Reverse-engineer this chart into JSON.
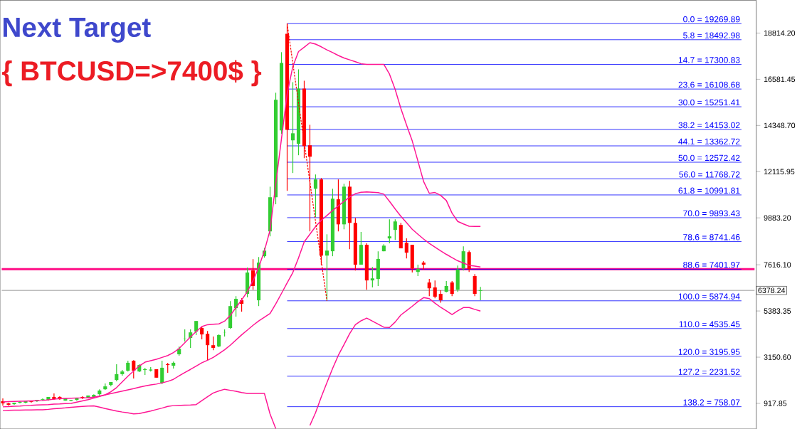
{
  "chart_data": {
    "type": "candlestick",
    "annotations": [
      "Next Target",
      "{ BTCUSD=>7400$ }"
    ],
    "categories": [
      null,
      null,
      null,
      null,
      null,
      null,
      null,
      null,
      null,
      null,
      null,
      null,
      null,
      null,
      null,
      null,
      null,
      null,
      null,
      null,
      null,
      null,
      null,
      null,
      null,
      null,
      null,
      null,
      null,
      null,
      null,
      null,
      null,
      null,
      null,
      null,
      null,
      null,
      null,
      null,
      null,
      null,
      null,
      null,
      null,
      null,
      null,
      null,
      null,
      null,
      null,
      null,
      null,
      null,
      null,
      null,
      null,
      null,
      null,
      null,
      null,
      null,
      null,
      null,
      null,
      null,
      null,
      null,
      null,
      null,
      null,
      null,
      null,
      null,
      null,
      null,
      null,
      null,
      null,
      null,
      null,
      null,
      null,
      null,
      null,
      null,
      null,
      null,
      null,
      null,
      null,
      null,
      null,
      null,
      null,
      null,
      null,
      null,
      null,
      null,
      null,
      null,
      null,
      null,
      null,
      null,
      null,
      null,
      null,
      null,
      null,
      null,
      null,
      null,
      null,
      null,
      null,
      null,
      null,
      null,
      null,
      null,
      null,
      null,
      null,
      null,
      null,
      null,
      null,
      null,
      null,
      null,
      null
    ],
    "ohlc": [
      [
        1020,
        1160,
        810,
        920
      ],
      [
        920,
        950,
        810,
        850
      ],
      [
        880,
        950,
        850,
        950
      ],
      [
        950,
        1020,
        920,
        990
      ],
      [
        950,
        1050,
        920,
        1020
      ],
      [
        1020,
        1050,
        950,
        990
      ],
      [
        1020,
        1090,
        990,
        1090
      ],
      [
        1090,
        1160,
        1050,
        1120
      ],
      [
        1090,
        1230,
        1050,
        1230
      ],
      [
        1230,
        1400,
        1090,
        1120
      ],
      [
        1230,
        1260,
        1090,
        1120
      ],
      [
        1050,
        1160,
        1050,
        1160
      ],
      [
        1050,
        1090,
        1020,
        1090
      ],
      [
        1090,
        1190,
        1050,
        1190
      ],
      [
        1230,
        1260,
        1120,
        1160
      ],
      [
        1190,
        1300,
        1160,
        1300
      ],
      [
        1230,
        1360,
        1190,
        1330
      ],
      [
        1360,
        1600,
        1300,
        1540
      ],
      [
        1600,
        1880,
        1570,
        1740
      ],
      [
        1810,
        1950,
        1740,
        1950
      ],
      [
        2050,
        2810,
        1980,
        2330
      ],
      [
        2330,
        2530,
        2260,
        2460
      ],
      [
        2500,
        2980,
        2460,
        2880
      ],
      [
        2980,
        3010,
        2120,
        2500
      ],
      [
        2460,
        2810,
        2430,
        2770
      ],
      [
        2530,
        2640,
        2290,
        2570
      ],
      [
        2530,
        2670,
        2460,
        2530
      ],
      [
        2570,
        2570,
        2160,
        2160
      ],
      [
        1910,
        2980,
        1850,
        2640
      ],
      [
        2810,
        2880,
        2400,
        2770
      ],
      [
        2740,
        2940,
        2600,
        2880
      ],
      [
        3290,
        3670,
        3220,
        3560
      ],
      [
        4040,
        4490,
        3910,
        4050
      ],
      [
        4080,
        4490,
        3600,
        4350
      ],
      [
        4390,
        4900,
        4220,
        4900
      ],
      [
        4560,
        4630,
        4010,
        4250
      ],
      [
        4280,
        4420,
        2980,
        3730
      ],
      [
        3730,
        4150,
        3490,
        3600
      ],
      [
        3670,
        4250,
        3630,
        4220
      ],
      [
        4350,
        4490,
        4150,
        4360
      ],
      [
        4560,
        5860,
        4520,
        5620
      ],
      [
        5520,
        6100,
        5110,
        5970
      ],
      [
        5900,
        6000,
        5350,
        5730
      ],
      [
        6210,
        7480,
        6040,
        7240
      ],
      [
        7340,
        7890,
        6410,
        6590
      ],
      [
        5900,
        7990,
        5620,
        7720
      ],
      [
        8030,
        8440,
        7960,
        8300
      ],
      [
        9230,
        11390,
        8990,
        10880
      ],
      [
        10880,
        15930,
        10540,
        15590
      ],
      [
        14110,
        17890,
        13940,
        17370
      ],
      [
        18780,
        19270,
        11190,
        14140
      ],
      [
        13630,
        16440,
        12050,
        13970
      ],
      [
        13460,
        17060,
        12910,
        16130
      ],
      [
        16130,
        16510,
        12770,
        13350
      ],
      [
        13390,
        14380,
        9230,
        12840
      ],
      [
        11290,
        11980,
        9920,
        11740
      ],
      [
        11740,
        11810,
        7620,
        8060
      ],
      [
        8060,
        9090,
        5870,
        8300
      ],
      [
        8270,
        11290,
        8030,
        10810
      ],
      [
        10780,
        11740,
        9230,
        9570
      ],
      [
        9570,
        11530,
        9330,
        11390
      ],
      [
        11390,
        11670,
        8370,
        9640
      ],
      [
        9640,
        9880,
        7340,
        7620
      ],
      [
        7620,
        9200,
        7620,
        8580
      ],
      [
        8580,
        8650,
        6410,
        6860
      ],
      [
        6860,
        7510,
        6520,
        6960
      ],
      [
        6930,
        8270,
        6590,
        7900
      ],
      [
        8270,
        8610,
        8270,
        8540
      ],
      [
        8890,
        9810,
        8650,
        8990
      ],
      [
        9300,
        9810,
        8820,
        9710
      ],
      [
        9540,
        9640,
        8410,
        8410
      ],
      [
        8680,
        8890,
        7920,
        8200
      ],
      [
        8580,
        8580,
        7240,
        7440
      ],
      [
        7270,
        7620,
        7070,
        7410
      ],
      [
        7720,
        7790,
        7380,
        7620
      ],
      [
        6760,
        6930,
        6100,
        6480
      ],
      [
        6520,
        6860,
        6000,
        6070
      ],
      [
        6210,
        6380,
        5780,
        5900
      ],
      [
        6310,
        6830,
        6280,
        6590
      ],
      [
        6760,
        6830,
        6100,
        6210
      ],
      [
        6410,
        7580,
        6310,
        7380
      ],
      [
        7440,
        8510,
        7340,
        8270
      ],
      [
        8230,
        8300,
        7270,
        7410
      ],
      [
        7070,
        7170,
        6100,
        6210
      ],
      [
        6350,
        6550,
        5900,
        6380
      ],
      null,
      null,
      null,
      null,
      null,
      null,
      null,
      null,
      null,
      null,
      null,
      null,
      null,
      null,
      null,
      null,
      null,
      null,
      null,
      null,
      null,
      null,
      null,
      null,
      null,
      null,
      null,
      null,
      null,
      null,
      null,
      null,
      null,
      null,
      null,
      null,
      null,
      null,
      null,
      null,
      null,
      null,
      null,
      null,
      null,
      null,
      null,
      null
    ],
    "series": [
      {
        "type": "line",
        "color": "#ff1493",
        "values": [
          990,
          1000,
          1010,
          1020,
          1030,
          1040,
          1050,
          1060,
          1090,
          1120,
          1150,
          1160,
          1170,
          1180,
          1180,
          1190,
          1220,
          1270,
          1330,
          1480,
          1680,
          1960,
          2230,
          2480,
          2730,
          2910,
          2980,
          3050,
          3140,
          3230,
          3370,
          3570,
          3850,
          4130,
          4390,
          4630,
          4720,
          4740,
          4760,
          4890,
          5170,
          5550,
          5920,
          6320,
          6850,
          7490,
          8290,
          9300,
          11540,
          13700,
          15870,
          17200,
          17920,
          18130,
          18350,
          18280,
          18150,
          18000,
          17870,
          17730,
          17610,
          17520,
          17430,
          17330,
          17300,
          17300,
          17300,
          17300,
          16830,
          16090,
          15170,
          14370,
          13600,
          12630,
          11640,
          11070,
          11110,
          10970,
          10720,
          10110,
          9710,
          9590,
          9480,
          9470,
          9470,
          null,
          null,
          null,
          null,
          null,
          null,
          null,
          null,
          null,
          null,
          null,
          null,
          null,
          null,
          null,
          null,
          null,
          null,
          null,
          null,
          null,
          null,
          null,
          null,
          null,
          null,
          null,
          null,
          null,
          null,
          null,
          null,
          null,
          null,
          null,
          null,
          null,
          null,
          null,
          null,
          null,
          null,
          null,
          null,
          null,
          null,
          null,
          null
        ]
      },
      {
        "type": "line",
        "color": "#ff1493",
        "values": [
          750,
          760,
          780,
          790,
          810,
          820,
          840,
          850,
          860,
          880,
          890,
          910,
          920,
          980,
          1040,
          1100,
          1170,
          1250,
          1330,
          1390,
          1450,
          1510,
          1570,
          1630,
          1700,
          1760,
          1810,
          1850,
          1910,
          1980,
          2080,
          2250,
          2410,
          2560,
          2720,
          2880,
          3000,
          3140,
          3320,
          3510,
          3730,
          3980,
          4230,
          4460,
          4690,
          4900,
          5080,
          5260,
          5730,
          6230,
          6740,
          7240,
          7950,
          8720,
          9090,
          9460,
          9760,
          10000,
          10240,
          10460,
          10680,
          10890,
          11050,
          11120,
          11140,
          11120,
          11100,
          11030,
          10680,
          10310,
          9960,
          9650,
          9330,
          9090,
          8860,
          8650,
          8470,
          8290,
          8120,
          7960,
          7810,
          7700,
          7590,
          7550,
          7510,
          null,
          null,
          null,
          null,
          null,
          null,
          null,
          null,
          null,
          null,
          null,
          null,
          null,
          null,
          null,
          null,
          null,
          null,
          null,
          null,
          null,
          null,
          null,
          null,
          null,
          null,
          null,
          null,
          null,
          null,
          null,
          null,
          null,
          null,
          null,
          null,
          null,
          null,
          null,
          null,
          null,
          null,
          null,
          null,
          null,
          null,
          null,
          null
        ]
      },
      {
        "type": "line",
        "color": "#ff1493",
        "values": [
          570,
          580,
          590,
          590,
          600,
          600,
          610,
          610,
          630,
          660,
          680,
          700,
          730,
          750,
          770,
          790,
          800,
          740,
          670,
          610,
          550,
          500,
          460,
          410,
          430,
          490,
          550,
          620,
          690,
          770,
          810,
          820,
          830,
          840,
          860,
          1050,
          1240,
          1420,
          1520,
          1600,
          1550,
          1500,
          1440,
          1400,
          1400,
          1400,
          1400,
          400,
          -300,
          null,
          null,
          null,
          null,
          null,
          -150,
          470,
          1230,
          1920,
          2610,
          3240,
          3760,
          4290,
          4720,
          4910,
          5040,
          4890,
          4750,
          4600,
          4590,
          4850,
          5190,
          5400,
          5610,
          5840,
          6030,
          5980,
          5760,
          5560,
          5390,
          5210,
          5390,
          5550,
          5550,
          5460,
          5380,
          null,
          null,
          null,
          null,
          null,
          null,
          null,
          null,
          null,
          null,
          null,
          null,
          null,
          null,
          null,
          null,
          null,
          null,
          null,
          null,
          null,
          null,
          null,
          null,
          null,
          null,
          null,
          null,
          null,
          null,
          null,
          null,
          null,
          null,
          null,
          null,
          null,
          null,
          null,
          null,
          null,
          null,
          null,
          null,
          null,
          null,
          null,
          null
        ]
      },
      {
        "type": "line",
        "color": "#ff0000",
        "line_style": "dashed",
        "values": [
          null,
          null,
          null,
          null,
          null,
          null,
          null,
          null,
          null,
          null,
          null,
          null,
          null,
          null,
          null,
          null,
          null,
          null,
          null,
          null,
          null,
          null,
          null,
          null,
          null,
          null,
          null,
          null,
          null,
          null,
          null,
          null,
          null,
          null,
          null,
          null,
          null,
          null,
          null,
          null,
          null,
          null,
          null,
          null,
          null,
          null,
          null,
          null,
          null,
          null,
          19270,
          17360,
          15440,
          13530,
          11620,
          9700,
          7790,
          5870,
          null,
          null,
          null,
          null,
          null,
          null,
          null,
          null,
          null,
          null,
          null,
          null,
          null,
          null,
          null,
          null,
          null,
          null,
          null,
          null,
          null,
          null,
          null,
          null,
          null,
          null,
          null,
          null,
          null,
          null,
          null,
          null,
          null,
          null,
          null,
          null,
          null,
          null,
          null,
          null,
          null,
          null,
          null,
          null,
          null,
          null,
          null,
          null,
          null,
          null,
          null,
          null,
          null,
          null,
          null,
          null,
          null,
          null,
          null,
          null,
          null,
          null,
          null,
          null,
          null,
          null,
          null,
          null,
          null,
          null,
          null,
          null,
          null,
          null,
          null
        ]
      }
    ],
    "ylim": [
      -320,
      20400
    ],
    "yticks": [
      {
        "value": 917.85,
        "label": "917.85"
      },
      {
        "value": 3150.6,
        "label": "3150.60"
      },
      {
        "value": 5383.35,
        "label": "5383.35"
      },
      {
        "value": 7616.1,
        "label": "7616.10"
      },
      {
        "value": 9883.2,
        "label": "9883.20"
      },
      {
        "value": 12115.95,
        "label": "12115.95"
      },
      {
        "value": 14348.7,
        "label": "14348.70"
      },
      {
        "value": 16581.45,
        "label": "16581.45"
      },
      {
        "value": 18814.2,
        "label": "18814.20"
      }
    ],
    "ref_lines": [
      {
        "axis": "y",
        "value": 19269.89,
        "label": "0.0 = 19269.89",
        "color": "#0000ff"
      },
      {
        "axis": "y",
        "value": 18492.98,
        "label": "5.8 = 18492.98",
        "color": "#0000ff"
      },
      {
        "axis": "y",
        "value": 17300.83,
        "label": "14.7 = 17300.83",
        "color": "#0000ff"
      },
      {
        "axis": "y",
        "value": 16108.68,
        "label": "23.6 = 16108.68",
        "color": "#0000ff"
      },
      {
        "axis": "y",
        "value": 15251.41,
        "label": "30.0 = 15251.41",
        "color": "#0000ff"
      },
      {
        "axis": "y",
        "value": 14153.02,
        "label": "38.2 = 14153.02",
        "color": "#0000ff"
      },
      {
        "axis": "y",
        "value": 13362.72,
        "label": "44.1 = 13362.72",
        "color": "#0000ff"
      },
      {
        "axis": "y",
        "value": 12572.42,
        "label": "50.0 = 12572.42",
        "color": "#0000ff"
      },
      {
        "axis": "y",
        "value": 11768.72,
        "label": "56.0 = 11768.72",
        "color": "#0000ff"
      },
      {
        "axis": "y",
        "value": 10991.81,
        "label": "61.8 = 10991.81",
        "color": "#0000ff"
      },
      {
        "axis": "y",
        "value": 9893.43,
        "label": "70.0 = 9893.43",
        "color": "#0000ff"
      },
      {
        "axis": "y",
        "value": 8741.46,
        "label": "78.6 = 8741.46",
        "color": "#0000ff"
      },
      {
        "axis": "y",
        "value": 7401.97,
        "label": "88.6 = 7401.97",
        "color": "#0000ff"
      },
      {
        "axis": "y",
        "value": 5874.94,
        "label": "100.0 = 5874.94",
        "color": "#0000ff"
      },
      {
        "axis": "y",
        "value": 4535.45,
        "label": "110.0 = 4535.45",
        "color": "#0000ff"
      },
      {
        "axis": "y",
        "value": 3195.95,
        "label": "120.0 = 3195.95",
        "color": "#0000ff"
      },
      {
        "axis": "y",
        "value": 2231.52,
        "label": "127.2 = 2231.52",
        "color": "#0000ff"
      },
      {
        "axis": "y",
        "value": 758.07,
        "label": "138.2 = 758.07",
        "color": "#0000ff"
      },
      {
        "axis": "y",
        "value": 7400,
        "color": "#ff1a8c"
      },
      {
        "axis": "y",
        "value": 6378.24,
        "label": "6378.24",
        "color": "#808080"
      }
    ]
  }
}
